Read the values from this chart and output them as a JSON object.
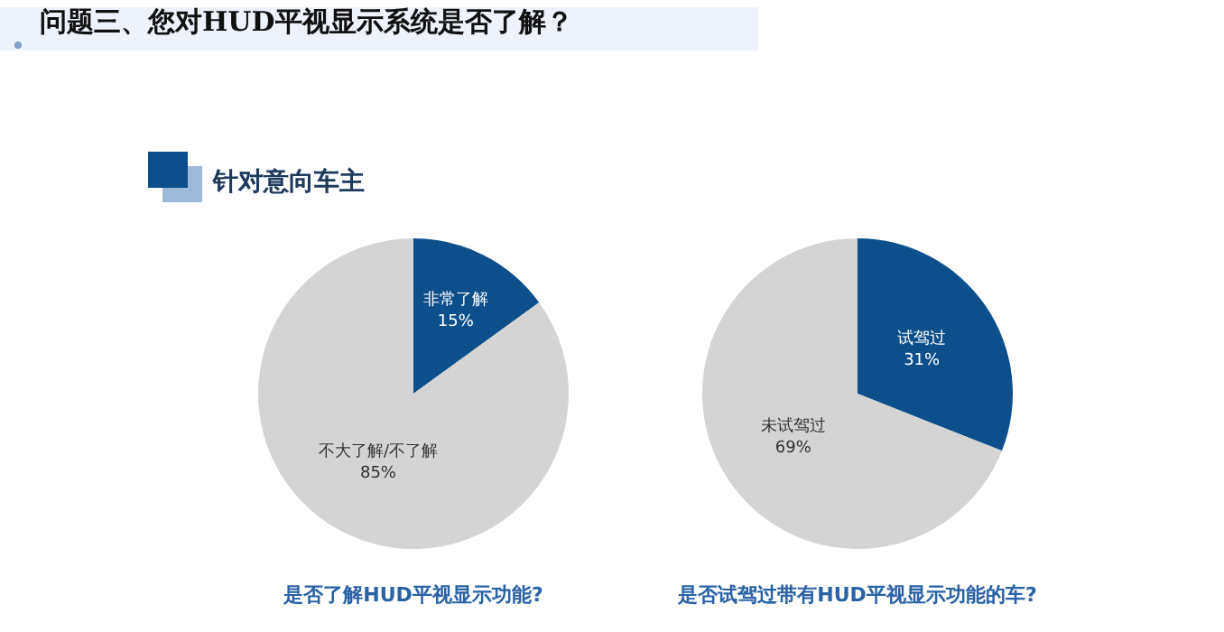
{
  "chart_data": [
    {
      "type": "other",
      "title": "问题三、您对HUD平视显示系统是否了解？",
      "subtitle": "针对意向车主"
    },
    {
      "type": "pie",
      "title": "是否了解HUD平视显示功能?",
      "categories": [
        "非常了解",
        "不大了解/不了解"
      ],
      "values": [
        15,
        85
      ],
      "value_labels": [
        "15%",
        "85%"
      ],
      "colors": [
        "#0d4f8b",
        "#d4d4d4"
      ]
    },
    {
      "type": "pie",
      "title": "是否试驾过带有HUD平视显示功能的车?",
      "categories": [
        "试驾过",
        "未试驾过"
      ],
      "values": [
        31,
        69
      ],
      "value_labels": [
        "31%",
        "69%"
      ],
      "colors": [
        "#0d4f8b",
        "#d4d4d4"
      ]
    }
  ]
}
